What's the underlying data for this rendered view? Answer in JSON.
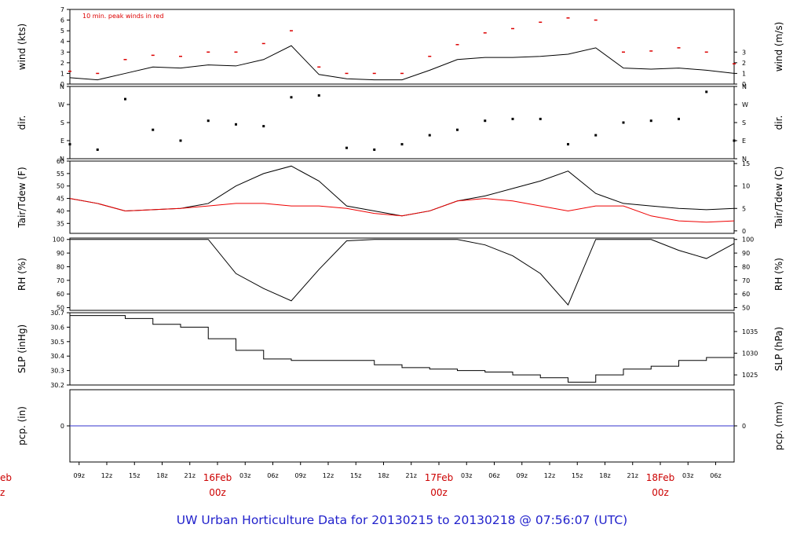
{
  "chart_data": [
    {
      "type": "line",
      "panel": "wind",
      "ylabel_left": "wind (kts)",
      "ylabel_right": "wind (m/s)",
      "ylim": [
        0,
        7
      ],
      "yticks_left": [
        "0",
        "1",
        "2",
        "3",
        "4",
        "5",
        "6",
        "7"
      ],
      "yticks_right": [
        "0",
        "1",
        "2",
        "3"
      ],
      "right_tick_values": [
        0,
        1,
        2,
        3
      ],
      "annotation": "10 min. peak winds in red",
      "series": [
        {
          "key": "mean",
          "color": "#000000",
          "x": [
            0,
            3,
            6,
            9,
            12,
            15,
            18,
            21,
            24,
            27,
            30,
            33,
            36,
            39,
            42,
            45,
            48,
            51,
            54,
            57,
            60,
            63,
            66,
            69,
            72
          ],
          "values": [
            0.6,
            0.4,
            1.0,
            1.6,
            1.5,
            1.8,
            1.7,
            2.3,
            3.6,
            0.9,
            0.5,
            0.4,
            0.4,
            1.3,
            2.3,
            2.5,
            2.5,
            2.6,
            2.8,
            3.4,
            1.5,
            1.4,
            1.5,
            1.3,
            1.0
          ]
        },
        {
          "key": "peak",
          "color": "#dd0000",
          "x": [
            0,
            3,
            6,
            9,
            12,
            15,
            18,
            21,
            24,
            27,
            30,
            33,
            36,
            39,
            42,
            45,
            48,
            51,
            54,
            57,
            60,
            63,
            66,
            69,
            72
          ],
          "values": [
            1.2,
            1.0,
            2.3,
            2.7,
            2.6,
            3.0,
            3.0,
            3.8,
            5.0,
            1.6,
            1.0,
            1.0,
            1.0,
            2.6,
            3.7,
            4.8,
            5.2,
            5.8,
            6.2,
            6.0,
            3.0,
            3.1,
            3.4,
            3.0,
            1.9
          ]
        }
      ]
    },
    {
      "type": "scatter",
      "panel": "dir",
      "ylabel_left": "dir.",
      "ylabel_right": "dir.",
      "ylim": [
        0,
        4
      ],
      "yticks_left": [
        "N",
        "E",
        "S",
        "W",
        "N"
      ],
      "yticks_right": [
        "N",
        "E",
        "S",
        "W",
        "N"
      ],
      "right_tick_values": [
        0,
        1,
        2,
        3,
        4
      ],
      "series": [
        {
          "key": "direction",
          "color": "#000000",
          "x": [
            0,
            3,
            6,
            9,
            12,
            15,
            18,
            21,
            24,
            27,
            30,
            33,
            36,
            39,
            42,
            45,
            48,
            51,
            54,
            57,
            60,
            63,
            66,
            69,
            72
          ],
          "values": [
            0.8,
            0.5,
            3.3,
            1.6,
            1.0,
            2.1,
            1.9,
            1.8,
            3.4,
            3.5,
            0.6,
            0.5,
            0.8,
            1.3,
            1.6,
            2.1,
            2.2,
            2.2,
            0.8,
            1.3,
            2.0,
            2.1,
            2.2,
            3.7,
            1.0
          ]
        }
      ]
    },
    {
      "type": "line",
      "panel": "temperature",
      "ylabel_left": "Tair/Tdew (F)",
      "ylabel_right": "Tair/Tdew (C)",
      "ylim": [
        31,
        60
      ],
      "yticks_left": [
        "35",
        "40",
        "45",
        "50",
        "55",
        "60"
      ],
      "yticks_right": [
        "0",
        "5",
        "10",
        "15"
      ],
      "right_tick_values": [
        32,
        41,
        50,
        59
      ],
      "series": [
        {
          "key": "tair",
          "color": "#000000",
          "x": [
            0,
            3,
            6,
            9,
            12,
            15,
            18,
            21,
            24,
            27,
            30,
            33,
            36,
            39,
            42,
            45,
            48,
            51,
            54,
            57,
            60,
            63,
            66,
            69,
            72
          ],
          "values": [
            45,
            43,
            40,
            40.5,
            41,
            43,
            50,
            55,
            58,
            52,
            42,
            40,
            38,
            40,
            44,
            46,
            49,
            52,
            56,
            47,
            43,
            42,
            41,
            40.5,
            41
          ]
        },
        {
          "key": "tdew",
          "color": "#ee0000",
          "x": [
            0,
            3,
            6,
            9,
            12,
            15,
            18,
            21,
            24,
            27,
            30,
            33,
            36,
            39,
            42,
            45,
            48,
            51,
            54,
            57,
            60,
            63,
            66,
            69,
            72
          ],
          "values": [
            45,
            43,
            40,
            40.5,
            41,
            42,
            43,
            43,
            42,
            42,
            41,
            39,
            38,
            40,
            44,
            45,
            44,
            42,
            40,
            42,
            42,
            38,
            36,
            35.5,
            36
          ]
        }
      ]
    },
    {
      "type": "line",
      "panel": "rh",
      "ylabel_left": "RH (%)",
      "ylabel_right": "RH (%)",
      "ylim": [
        48,
        101
      ],
      "yticks_left": [
        "50",
        "60",
        "70",
        "80",
        "90",
        "100"
      ],
      "yticks_right": [
        "50",
        "60",
        "70",
        "80",
        "90",
        "100"
      ],
      "right_tick_values": [
        50,
        60,
        70,
        80,
        90,
        100
      ],
      "series": [
        {
          "key": "rh",
          "color": "#000000",
          "x": [
            0,
            3,
            6,
            9,
            12,
            15,
            18,
            21,
            24,
            27,
            30,
            33,
            36,
            39,
            42,
            45,
            48,
            51,
            54,
            57,
            60,
            63,
            66,
            69,
            72
          ],
          "values": [
            100,
            100,
            100,
            100,
            100,
            100,
            75,
            64,
            55,
            78,
            99,
            100,
            100,
            100,
            100,
            96,
            88,
            75,
            52,
            100,
            100,
            100,
            92,
            86,
            97
          ]
        }
      ]
    },
    {
      "type": "line",
      "panel": "slp",
      "ylabel_left": "SLP (inHg)",
      "ylabel_right": "SLP (hPa)",
      "ylim": [
        30.2,
        30.7
      ],
      "yticks_left": [
        "30.2",
        "30.3",
        "30.4",
        "30.5",
        "30.6",
        "30.7"
      ],
      "yticks_right": [
        "1025",
        "1030",
        "1035"
      ],
      "right_tick_values": [
        30.27,
        30.42,
        30.57
      ],
      "series": [
        {
          "key": "slp",
          "color": "#000000",
          "x": [
            0,
            3,
            6,
            9,
            12,
            15,
            18,
            21,
            24,
            27,
            30,
            33,
            36,
            39,
            42,
            45,
            48,
            51,
            54,
            57,
            60,
            63,
            66,
            69,
            72
          ],
          "values": [
            30.68,
            30.68,
            30.66,
            30.62,
            30.6,
            30.52,
            30.44,
            30.38,
            30.37,
            30.37,
            30.37,
            30.34,
            30.32,
            30.31,
            30.3,
            30.29,
            30.27,
            30.25,
            30.22,
            30.27,
            30.31,
            30.33,
            30.37,
            30.39,
            30.33
          ]
        }
      ]
    },
    {
      "type": "line",
      "panel": "pcp",
      "ylabel_left": "pcp. (in)",
      "ylabel_right": "pcp. (mm)",
      "yticks_left": [
        "0"
      ],
      "yticks_right": [
        "0"
      ],
      "series": [
        {
          "key": "pcp",
          "color": "#3333cc",
          "x": [
            0,
            72
          ],
          "values": [
            0,
            0
          ]
        }
      ]
    }
  ],
  "time_axis": {
    "tick_labels": [
      "09z",
      "12z",
      "15z",
      "18z",
      "21z",
      "03z",
      "06z",
      "09z",
      "12z",
      "15z",
      "18z",
      "21z",
      "03z",
      "06z",
      "09z",
      "12z",
      "15z",
      "18z",
      "21z",
      "03z",
      "06z",
      "09z",
      "12z",
      "15z",
      "18z",
      "21z",
      "03z",
      "06z"
    ],
    "day_labels": [
      {
        "date": "16Feb",
        "time": "00z"
      },
      {
        "date": "17Feb",
        "time": "00z"
      },
      {
        "date": "18Feb",
        "time": "00z"
      }
    ],
    "partial_day_label": {
      "date": "eb",
      "time": "z"
    }
  },
  "footer": {
    "title": "UW Urban Horticulture Data for 20130215  to  20130218 @ 07:56:07  (UTC)"
  },
  "colors": {
    "frame": "#000000",
    "day_label": "#cc0000",
    "footer": "#2222cc",
    "peak_wind": "#dd0000",
    "dewpoint": "#ee0000",
    "precip": "#3333cc"
  }
}
